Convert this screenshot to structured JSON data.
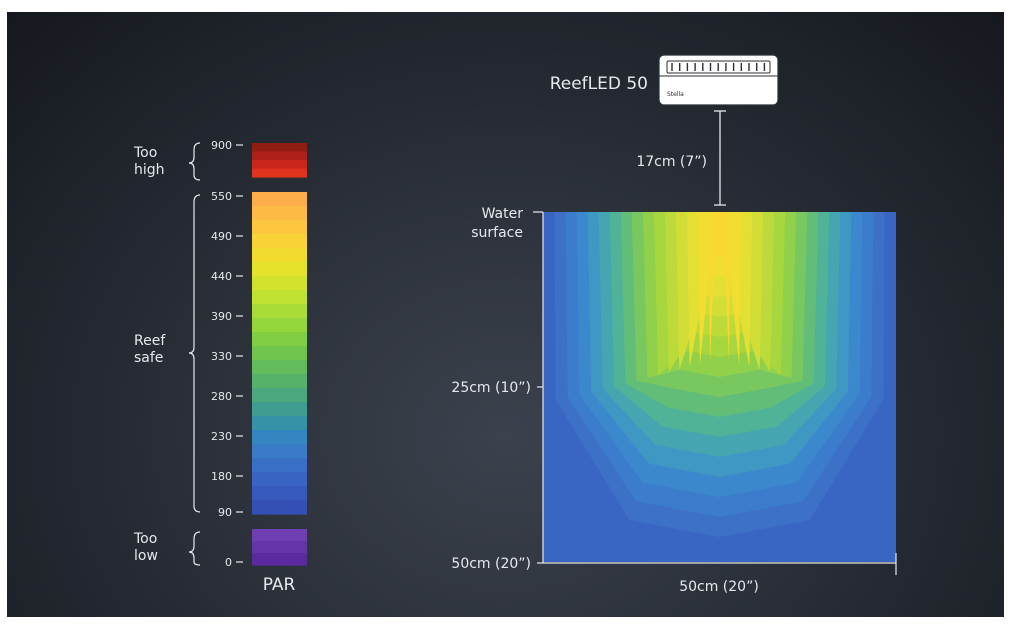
{
  "device": {
    "name": "ReefLED 50",
    "brand": "Stella"
  },
  "distance_label": "17cm (7”)",
  "depth_labels": {
    "surface_line1": "Water",
    "surface_line2": "surface",
    "mid": "25cm (10”)",
    "bottom": "50cm (20”)"
  },
  "width_label": "50cm (20”)",
  "scale": {
    "title": "PAR",
    "zones": [
      {
        "key": "too_high",
        "line1": "Too",
        "line2": "high",
        "min": 550,
        "max": 900
      },
      {
        "key": "reef_safe",
        "line1": "Reef",
        "line2": "safe",
        "min": 90,
        "max": 550
      },
      {
        "key": "too_low",
        "line1": "Too",
        "line2": "low",
        "min": 0,
        "max": 90
      }
    ],
    "ticks": [
      "900",
      "550",
      "490",
      "440",
      "390",
      "330",
      "280",
      "230",
      "180",
      "90",
      "0"
    ],
    "colors": {
      "too_high": [
        "#8f1d14",
        "#b0201a",
        "#c9261b",
        "#e0331d"
      ],
      "reef_safe": [
        "#fdae4b",
        "#fdba45",
        "#fcc63f",
        "#f8d237",
        "#f1db2f",
        "#e4e22a",
        "#d2e22c",
        "#bee132",
        "#aadc37",
        "#95d63c",
        "#82ce43",
        "#70c54c",
        "#62bc5b",
        "#56b26a",
        "#4ba87c",
        "#3f9d8f",
        "#3592a7",
        "#3386c0",
        "#3a7bc8",
        "#3a6fc6",
        "#3964c2",
        "#3659bd",
        "#3450b5"
      ],
      "too_low": [
        "#6f3fb2",
        "#6534a8",
        "#5b2a9e"
      ]
    }
  },
  "heatmap": {
    "colors": {
      "bg": "#3a66c3",
      "levels": [
        "#3d70c7",
        "#3c7ccc",
        "#3c88cd",
        "#3f97c4",
        "#45a5b0",
        "#50b296",
        "#62bd79",
        "#78c85f",
        "#91d04a",
        "#a8d63f",
        "#bdda3b",
        "#d2de37",
        "#e4e033",
        "#f2de31",
        "#f8d92f"
      ]
    }
  }
}
